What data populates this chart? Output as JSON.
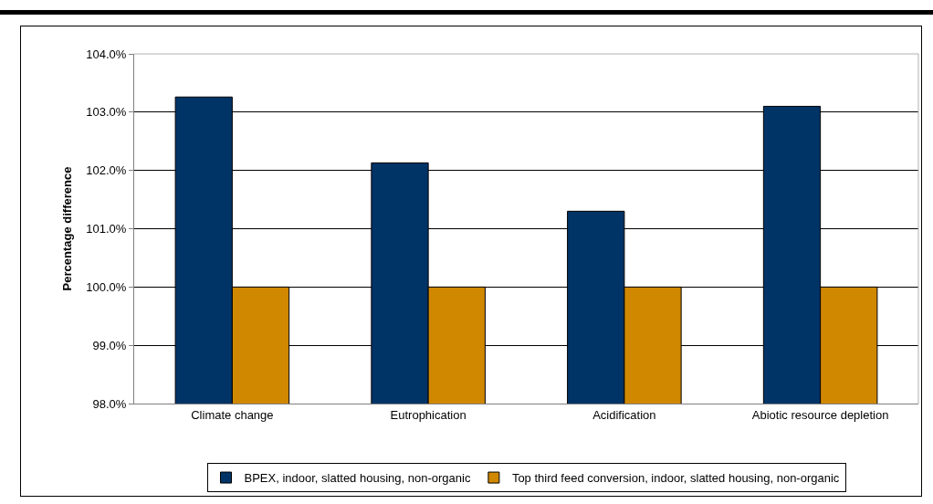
{
  "chart_data": {
    "type": "bar",
    "ylabel": "Percentage difference",
    "categories": [
      "Climate change",
      "Eutrophication",
      "Acidification",
      "Abiotic resource depletion"
    ],
    "series": [
      {
        "name": "BPEX, indoor, slatted housing, non-organic",
        "color": "#003366",
        "values": [
          103.26,
          102.13,
          101.3,
          103.1
        ]
      },
      {
        "name": "Top third feed conversion, indoor, slatted housing, non-organic",
        "color": "#d08800",
        "values": [
          100,
          100,
          100,
          100
        ]
      }
    ],
    "ylim": [
      98,
      104
    ],
    "yticks": [
      {
        "value": 98,
        "label": "98.0%"
      },
      {
        "value": 99,
        "label": "99.0%"
      },
      {
        "value": 100,
        "label": "100.0%"
      },
      {
        "value": 101,
        "label": "101.0%"
      },
      {
        "value": 102,
        "label": "102.0%"
      },
      {
        "value": 103,
        "label": "103.0%"
      },
      {
        "value": 104,
        "label": "104.0%"
      }
    ],
    "grid": "y",
    "legend": "bottom"
  }
}
